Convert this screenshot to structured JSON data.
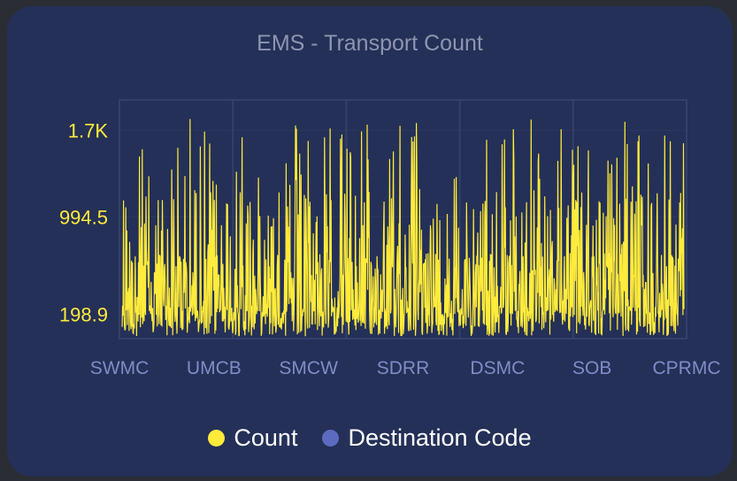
{
  "colors": {
    "card_bg": "#243057",
    "series_count": "#ffeb3b",
    "series_destination": "#5c6bc0",
    "y_tick_color": "#ffeb3b",
    "x_tick_color": "#7f8cc7",
    "grid": "#33406a",
    "title": "#8e95b1"
  },
  "chart_data": {
    "type": "line",
    "title": "EMS - Transport Count",
    "y_ticks": [
      "198.9",
      "994.5",
      "1.7K"
    ],
    "y_tick_values": [
      198.9,
      994.5,
      1700
    ],
    "ylim": [
      0,
      1950
    ],
    "x_ticks": [
      "SWMC",
      "UMCB",
      "SMCW",
      "SDRR",
      "DSMC",
      "SOB",
      "CPRMC"
    ],
    "grid": true,
    "legend_position": "bottom",
    "series": [
      {
        "name": "Count",
        "num_points": 1200,
        "approx_range": [
          10,
          1880
        ],
        "note_values": "dense series; individual values not legible"
      },
      {
        "name": "Destination Code",
        "values": []
      }
    ]
  },
  "legend": {
    "items": [
      {
        "label": "Count",
        "color": "#ffeb3b"
      },
      {
        "label": "Destination Code",
        "color": "#5c6bc0"
      }
    ]
  }
}
